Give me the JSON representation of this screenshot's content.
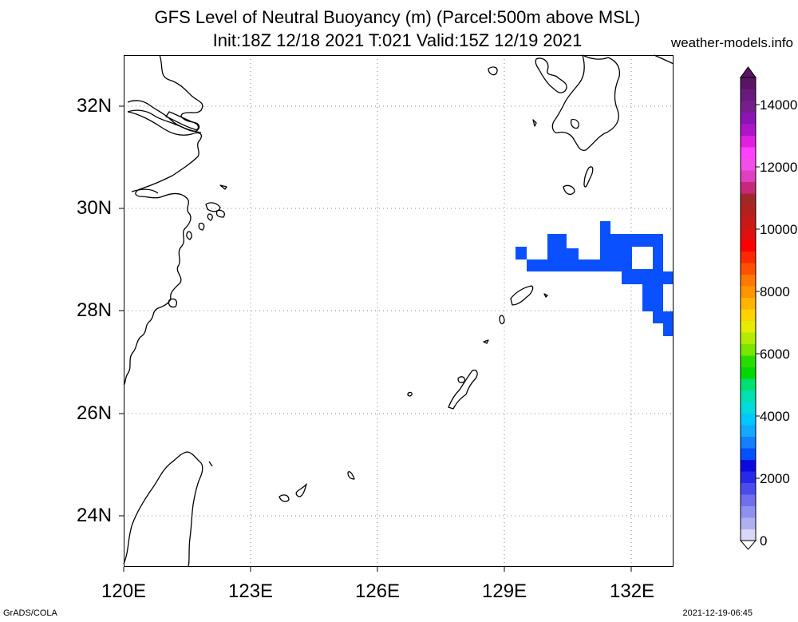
{
  "header": {
    "title_line1": "GFS Level of Neutral Buoyancy (m) (Parcel:500m above MSL)",
    "title_line2": "Init:18Z 12/18 2021 T:021 Valid:15Z 12/19 2021",
    "site": "weather-models.info"
  },
  "map": {
    "lon_range": [
      120,
      133
    ],
    "lat_range": [
      23,
      33
    ],
    "lat_labels": [
      "32N",
      "30N",
      "28N",
      "26N",
      "24N"
    ],
    "lon_labels": [
      "120E",
      "123E",
      "126E",
      "129E",
      "132E"
    ],
    "grid": "dotted",
    "field_color": "#0a50ff"
  },
  "colorbar": {
    "labels": [
      "14000",
      "12000",
      "10000",
      "8000",
      "6000",
      "4000",
      "2000",
      "0"
    ],
    "colors": [
      "#d8d8f8",
      "#b0b0f0",
      "#9090ee",
      "#7070ec",
      "#4c4cec",
      "#2828ea",
      "#0a0ae0",
      "#0050ff",
      "#1480ff",
      "#14a8ff",
      "#00c8ff",
      "#00dcdc",
      "#00e0b0",
      "#00e070",
      "#00d800",
      "#28dc00",
      "#78e600",
      "#b4ec00",
      "#e6ec00",
      "#ffd200",
      "#ffb400",
      "#ff9600",
      "#ff7800",
      "#ff5000",
      "#ff2800",
      "#ff0000",
      "#e01010",
      "#c81818",
      "#b42020",
      "#a02828",
      "#c8287a",
      "#e040c0",
      "#f050e8",
      "#ff40ff",
      "#e020e0",
      "#b014c8",
      "#8c14b4",
      "#781e8c",
      "#6a1a7a",
      "#5a1464"
    ]
  },
  "footer": {
    "left": "GrADS/COLA",
    "right": "2021-12-19-06:45"
  }
}
